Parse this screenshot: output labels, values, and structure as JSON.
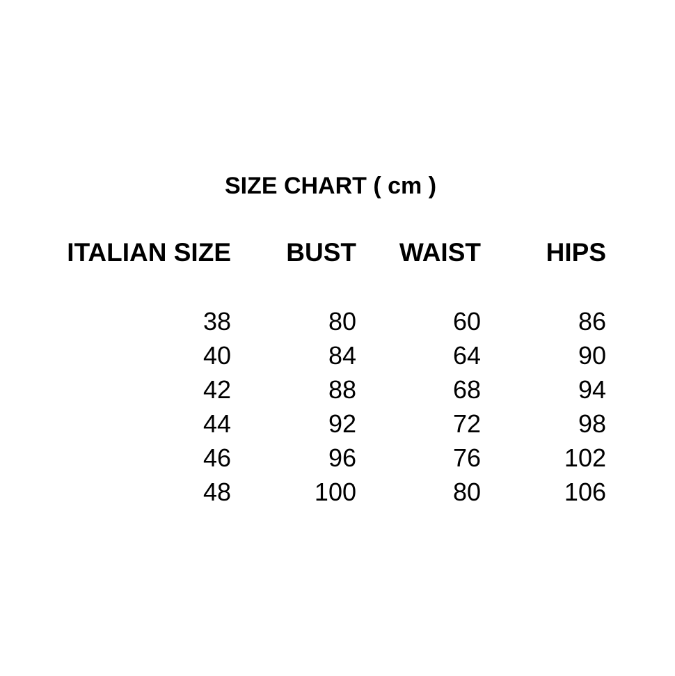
{
  "title": "SIZE CHART ( cm )",
  "columns": [
    "ITALIAN SIZE",
    "BUST",
    "WAIST",
    "HIPS"
  ],
  "rows": [
    [
      "38",
      "80",
      "60",
      "86"
    ],
    [
      "40",
      "84",
      "64",
      "90"
    ],
    [
      "42",
      "88",
      "68",
      "94"
    ],
    [
      "44",
      "92",
      "72",
      "98"
    ],
    [
      "46",
      "96",
      "76",
      "102"
    ],
    [
      "48",
      "100",
      "80",
      "106"
    ]
  ]
}
